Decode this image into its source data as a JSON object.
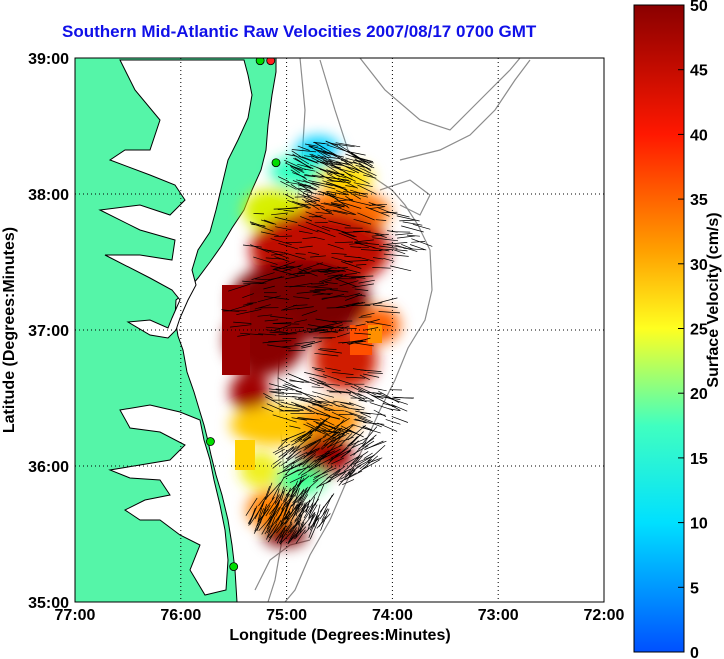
{
  "title": "Southern Mid-Atlantic Raw Velocities 2007/08/17 0700 GMT",
  "map": {
    "xlabel": "Longitude (Degrees:Minutes)",
    "ylabel": "Latitude (Degrees:Minutes)",
    "lon_ticks": [
      "77:00",
      "76:00",
      "75:00",
      "74:00",
      "73:00",
      "72:00"
    ],
    "lat_ticks": [
      "39:00",
      "38:00",
      "37:00",
      "36:00",
      "35:00"
    ],
    "lon_range": [
      -77,
      -72
    ],
    "lat_range": [
      35,
      39
    ],
    "grid": true,
    "land_color": "#55f5a8",
    "coast_color": "#000000",
    "ocean_color": "#ffffff",
    "bathymetry_color": "#8c8c8c",
    "vector_color": "#000000",
    "station_color": "#00dd00",
    "station_alt_color": "#ff2020"
  },
  "colorbar": {
    "label": "Surface Velocity (cm/s)",
    "ticks": [
      "50",
      "45",
      "40",
      "35",
      "30",
      "25",
      "20",
      "15",
      "10",
      "5",
      "0"
    ],
    "min": 0,
    "max": 50,
    "colormap": "jet"
  },
  "stations": [
    {
      "lon": -75.15,
      "lat": 38.98,
      "type": "red"
    },
    {
      "lon": -75.25,
      "lat": 38.98,
      "type": "green"
    },
    {
      "lon": -75.1,
      "lat": 38.23,
      "type": "green"
    },
    {
      "lon": -75.72,
      "lat": 36.18,
      "type": "green"
    },
    {
      "lon": -75.5,
      "lat": 35.26,
      "type": "green"
    }
  ]
}
